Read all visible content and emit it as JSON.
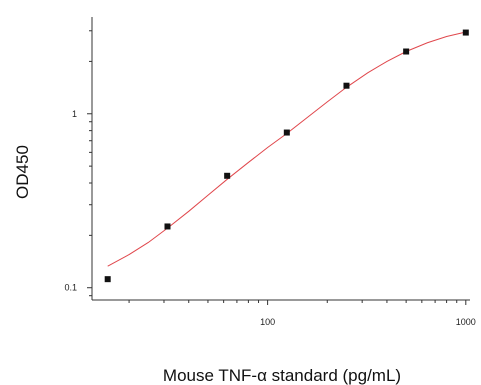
{
  "chart_data": {
    "type": "scatter",
    "title": "",
    "xlabel": "Mouse TNF-α standard (pg/mL)",
    "ylabel": "OD450",
    "x_scale": "log",
    "y_scale": "log",
    "xlim": [
      13,
      1050
    ],
    "ylim": [
      0.085,
      3.6
    ],
    "x_ticks": [
      {
        "value": 100,
        "label": "100"
      },
      {
        "value": 1000,
        "label": "1000"
      }
    ],
    "y_ticks": [
      {
        "value": 0.1,
        "label": "0.1"
      },
      {
        "value": 1,
        "label": "1"
      }
    ],
    "grid": false,
    "series": [
      {
        "kind": "points",
        "x": [
          15.6,
          31.25,
          62.5,
          125,
          250,
          500,
          1000
        ],
        "y": [
          0.112,
          0.225,
          0.44,
          0.78,
          1.45,
          2.28,
          2.93
        ]
      },
      {
        "kind": "fit-curve",
        "x": [
          15.6,
          20,
          25,
          31.25,
          40,
          50,
          62.5,
          80,
          100,
          125,
          160,
          200,
          250,
          320,
          400,
          500,
          640,
          800,
          1000
        ],
        "y": [
          0.133,
          0.155,
          0.182,
          0.22,
          0.275,
          0.34,
          0.42,
          0.525,
          0.64,
          0.77,
          0.96,
          1.17,
          1.42,
          1.72,
          2.0,
          2.28,
          2.56,
          2.78,
          2.95
        ]
      }
    ],
    "colors": {
      "points": "#111111",
      "curve": "#e0474c",
      "axis": "#333333"
    }
  }
}
